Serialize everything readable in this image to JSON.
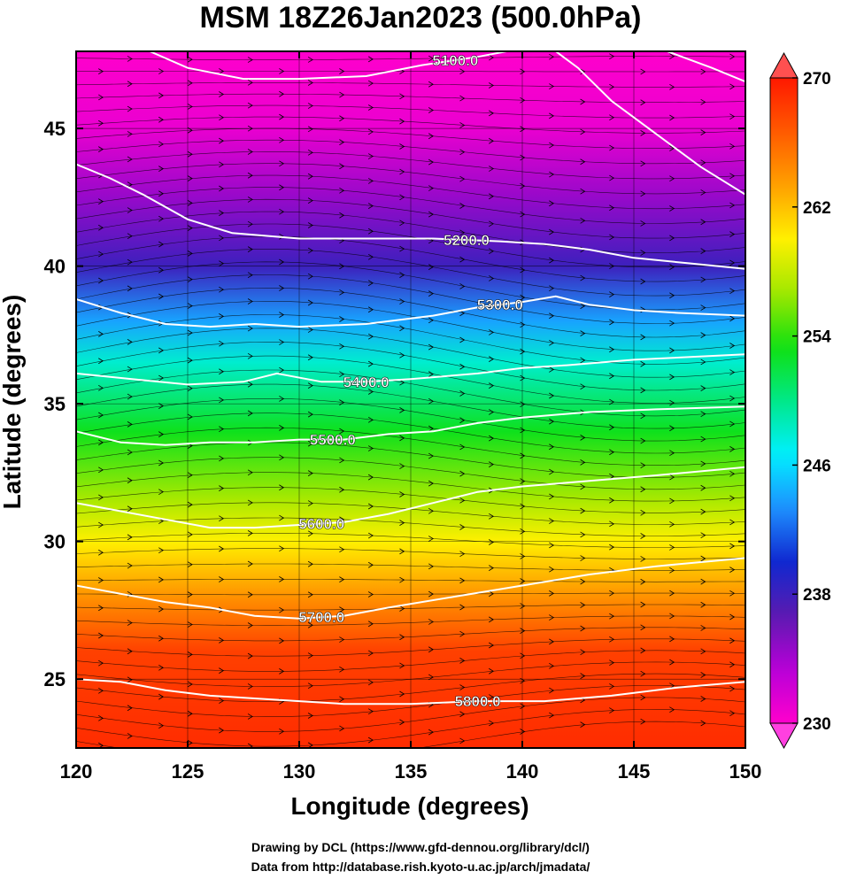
{
  "title": "MSM 18Z26Jan2023 (500.0hPa)",
  "credits": {
    "line1": "Drawing by DCL (https://www.gfd-dennou.org/library/dcl/)",
    "line2": "Data from http://database.rish.kyoto-u.ac.jp/arch/jmadata/"
  },
  "chart_data": {
    "type": "heatmap",
    "title": "MSM 18Z26Jan2023 (500.0hPa)",
    "xlabel": "Longitude (degrees)",
    "ylabel": "Latitude  (degrees)",
    "xlim": [
      120,
      150
    ],
    "ylim": [
      22.5,
      47.8
    ],
    "xticks": [
      120,
      125,
      130,
      135,
      140,
      145,
      150
    ],
    "yticks": [
      25,
      30,
      35,
      40,
      45
    ],
    "grid": true,
    "colorbar": {
      "min": 230,
      "max": 270,
      "ticks": [
        230,
        238,
        246,
        254,
        262,
        270
      ],
      "colors": [
        "#ff00cc",
        "#b800d8",
        "#5b1ab0",
        "#1028d0",
        "#1e90ff",
        "#00f0ff",
        "#00e888",
        "#10e010",
        "#a0e800",
        "#fff000",
        "#ffa000",
        "#ff5a00",
        "#ff1800"
      ],
      "extend": "both"
    },
    "field_temperature_K": [
      {
        "lat": 47.8,
        "value": 230
      },
      {
        "lat": 45.0,
        "value": 231
      },
      {
        "lat": 42.5,
        "value": 234.5
      },
      {
        "lat": 40.0,
        "value": 238
      },
      {
        "lat": 38.0,
        "value": 244
      },
      {
        "lat": 36.5,
        "value": 248
      },
      {
        "lat": 34.0,
        "value": 253
      },
      {
        "lat": 31.5,
        "value": 257
      },
      {
        "lat": 30.0,
        "value": 260
      },
      {
        "lat": 28.0,
        "value": 264
      },
      {
        "lat": 26.0,
        "value": 268
      },
      {
        "lat": 22.5,
        "value": 269
      }
    ],
    "contours": [
      {
        "label": "5100.0",
        "label_lon": 137.0,
        "points": [
          [
            123.3,
            47.8
          ],
          [
            125.0,
            47.2
          ],
          [
            127.5,
            46.8
          ],
          [
            130.0,
            46.8
          ],
          [
            133.0,
            46.9
          ],
          [
            135.5,
            47.3
          ],
          [
            138.0,
            47.6
          ],
          [
            139.3,
            47.8
          ]
        ]
      },
      {
        "label": "5100.0",
        "label_lon": null,
        "points": [
          [
            141.5,
            47.8
          ],
          [
            142.5,
            47.2
          ],
          [
            144.0,
            46.0
          ],
          [
            146.0,
            44.8
          ],
          [
            148.0,
            43.6
          ],
          [
            150.0,
            42.6
          ]
        ]
      },
      {
        "label": "",
        "label_lon": null,
        "points": [
          [
            146.5,
            47.8
          ],
          [
            148.5,
            47.2
          ],
          [
            150.0,
            46.7
          ]
        ]
      },
      {
        "label": "5200.0",
        "label_lon": 137.5,
        "points": [
          [
            120.0,
            43.7
          ],
          [
            121.5,
            43.2
          ],
          [
            123.0,
            42.6
          ],
          [
            125.0,
            41.7
          ],
          [
            127.0,
            41.2
          ],
          [
            130.0,
            41.0
          ],
          [
            133.0,
            41.0
          ],
          [
            136.0,
            41.0
          ],
          [
            139.0,
            40.9
          ],
          [
            141.0,
            40.8
          ],
          [
            143.0,
            40.6
          ],
          [
            145.0,
            40.3
          ],
          [
            147.5,
            40.1
          ],
          [
            150.0,
            39.9
          ]
        ]
      },
      {
        "label": "5300.0",
        "label_lon": 139.0,
        "points": [
          [
            120.0,
            38.8
          ],
          [
            122.0,
            38.3
          ],
          [
            124.0,
            37.9
          ],
          [
            126.0,
            37.8
          ],
          [
            128.0,
            37.9
          ],
          [
            130.0,
            37.8
          ],
          [
            133.0,
            37.9
          ],
          [
            136.0,
            38.2
          ],
          [
            138.0,
            38.5
          ],
          [
            140.0,
            38.7
          ],
          [
            141.5,
            38.9
          ],
          [
            143.0,
            38.6
          ],
          [
            145.0,
            38.4
          ],
          [
            147.0,
            38.3
          ],
          [
            150.0,
            38.2
          ]
        ]
      },
      {
        "label": "5400.0",
        "label_lon": 133.0,
        "points": [
          [
            120.0,
            36.1
          ],
          [
            122.5,
            35.9
          ],
          [
            125.0,
            35.7
          ],
          [
            127.5,
            35.8
          ],
          [
            129.0,
            36.1
          ],
          [
            131.0,
            35.8
          ],
          [
            133.0,
            35.8
          ],
          [
            135.0,
            35.9
          ],
          [
            138.0,
            36.1
          ],
          [
            140.0,
            36.3
          ],
          [
            142.0,
            36.4
          ],
          [
            145.0,
            36.6
          ],
          [
            150.0,
            36.8
          ]
        ]
      },
      {
        "label": "5500.0",
        "label_lon": 131.5,
        "points": [
          [
            120.0,
            34.0
          ],
          [
            122.0,
            33.6
          ],
          [
            124.0,
            33.5
          ],
          [
            126.0,
            33.6
          ],
          [
            128.0,
            33.6
          ],
          [
            130.0,
            33.7
          ],
          [
            132.0,
            33.7
          ],
          [
            134.0,
            33.9
          ],
          [
            136.0,
            34.0
          ],
          [
            138.0,
            34.3
          ],
          [
            140.0,
            34.5
          ],
          [
            143.0,
            34.7
          ],
          [
            146.0,
            34.8
          ],
          [
            150.0,
            34.9
          ]
        ]
      },
      {
        "label": "5600.0",
        "label_lon": 131.0,
        "points": [
          [
            120.0,
            31.4
          ],
          [
            122.0,
            31.1
          ],
          [
            124.0,
            30.8
          ],
          [
            126.0,
            30.5
          ],
          [
            128.0,
            30.5
          ],
          [
            130.0,
            30.6
          ],
          [
            132.0,
            30.7
          ],
          [
            134.0,
            31.0
          ],
          [
            136.0,
            31.4
          ],
          [
            138.0,
            31.8
          ],
          [
            140.0,
            32.0
          ],
          [
            143.0,
            32.2
          ],
          [
            146.0,
            32.4
          ],
          [
            150.0,
            32.7
          ]
        ]
      },
      {
        "label": "5700.0",
        "label_lon": 131.0,
        "points": [
          [
            120.0,
            28.4
          ],
          [
            122.0,
            28.1
          ],
          [
            124.0,
            27.8
          ],
          [
            126.0,
            27.6
          ],
          [
            128.0,
            27.3
          ],
          [
            130.0,
            27.2
          ],
          [
            132.0,
            27.3
          ],
          [
            134.0,
            27.6
          ],
          [
            137.0,
            28.0
          ],
          [
            140.0,
            28.4
          ],
          [
            143.0,
            28.8
          ],
          [
            146.0,
            29.1
          ],
          [
            150.0,
            29.4
          ]
        ]
      },
      {
        "label": "5800.0",
        "label_lon": 138.0,
        "points": [
          [
            120.0,
            25.0
          ],
          [
            122.0,
            24.9
          ],
          [
            124.0,
            24.6
          ],
          [
            126.0,
            24.4
          ],
          [
            128.0,
            24.3
          ],
          [
            130.0,
            24.2
          ],
          [
            132.0,
            24.1
          ],
          [
            135.0,
            24.1
          ],
          [
            138.0,
            24.2
          ],
          [
            141.0,
            24.2
          ],
          [
            144.0,
            24.4
          ],
          [
            147.0,
            24.7
          ],
          [
            150.0,
            24.9
          ]
        ]
      }
    ]
  }
}
